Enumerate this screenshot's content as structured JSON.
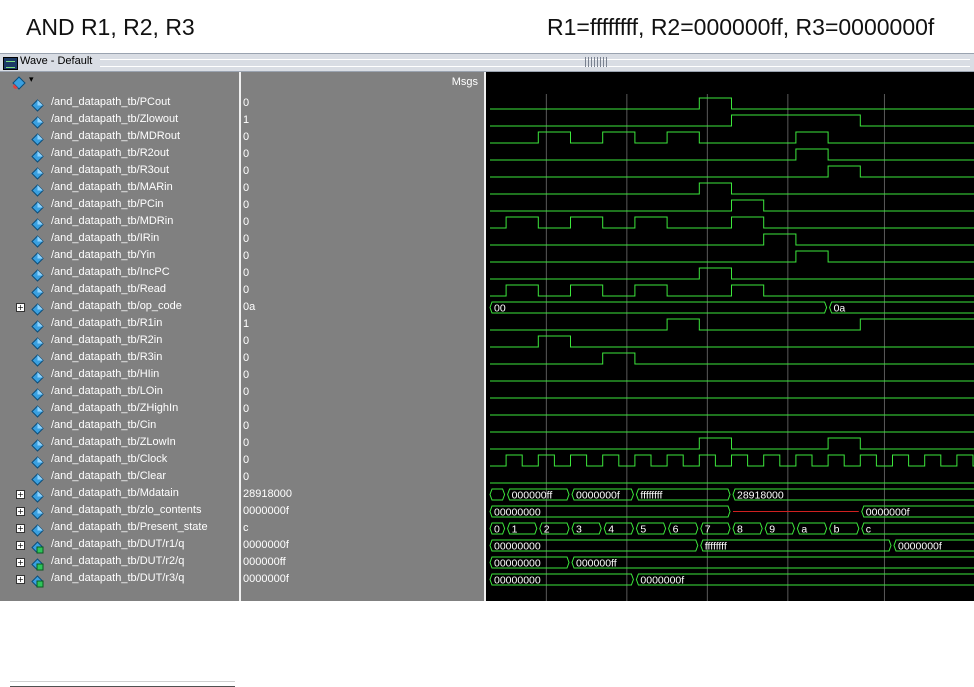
{
  "caption": {
    "left": "AND R1, R2, R3",
    "right": "R1=ffffffff, R2=000000ff, R3=0000000f"
  },
  "window": {
    "title": "Wave - Default",
    "icon": "wave-window-icon",
    "header_msgs": "Msgs",
    "tool_icon": "diamond-cursor-icon",
    "tool_dropdown": "▾"
  },
  "colors": {
    "wave": "#3ce63c",
    "grid": "#5a5a5a",
    "invalid": "#d02020",
    "panel_bg": "#808080",
    "wave_bg": "#000000"
  },
  "wave_grid": [
    7,
    17,
    27,
    37,
    49
  ],
  "signals": [
    {
      "name": "/and_datapath_tb/PCout",
      "value": "0",
      "type": "bit",
      "icon": "diamond-signal-icon",
      "expandable": false,
      "wave": [
        [
          0,
          0
        ],
        [
          26,
          1
        ],
        [
          30,
          0
        ]
      ]
    },
    {
      "name": "/and_datapath_tb/Zlowout",
      "value": "1",
      "type": "bit",
      "icon": "diamond-signal-icon",
      "expandable": false,
      "wave": [
        [
          0,
          0
        ],
        [
          30,
          1
        ],
        [
          46,
          0
        ]
      ]
    },
    {
      "name": "/and_datapath_tb/MDRout",
      "value": "0",
      "type": "bit",
      "icon": "diamond-signal-icon",
      "expandable": false,
      "wave": [
        [
          0,
          0
        ],
        [
          6,
          1
        ],
        [
          10,
          0
        ],
        [
          14,
          1
        ],
        [
          18,
          0
        ],
        [
          22,
          1
        ],
        [
          26,
          0
        ],
        [
          38,
          1
        ],
        [
          42,
          0
        ]
      ]
    },
    {
      "name": "/and_datapath_tb/R2out",
      "value": "0",
      "type": "bit",
      "icon": "diamond-signal-icon",
      "expandable": false,
      "wave": [
        [
          0,
          0
        ],
        [
          38,
          1
        ],
        [
          42,
          0
        ]
      ]
    },
    {
      "name": "/and_datapath_tb/R3out",
      "value": "0",
      "type": "bit",
      "icon": "diamond-signal-icon",
      "expandable": false,
      "wave": [
        [
          0,
          0
        ],
        [
          42,
          1
        ],
        [
          46,
          0
        ]
      ]
    },
    {
      "name": "/and_datapath_tb/MARin",
      "value": "0",
      "type": "bit",
      "icon": "diamond-signal-icon",
      "expandable": false,
      "wave": [
        [
          0,
          0
        ],
        [
          26,
          1
        ],
        [
          30,
          0
        ]
      ]
    },
    {
      "name": "/and_datapath_tb/PCin",
      "value": "0",
      "type": "bit",
      "icon": "diamond-signal-icon",
      "expandable": false,
      "wave": [
        [
          0,
          0
        ],
        [
          30,
          1
        ],
        [
          34,
          0
        ]
      ]
    },
    {
      "name": "/and_datapath_tb/MDRin",
      "value": "0",
      "type": "bit",
      "icon": "diamond-signal-icon",
      "expandable": false,
      "wave": [
        [
          0,
          0
        ],
        [
          2,
          1
        ],
        [
          6,
          0
        ],
        [
          10,
          1
        ],
        [
          14,
          0
        ],
        [
          18,
          1
        ],
        [
          22,
          0
        ],
        [
          30,
          1
        ],
        [
          34,
          0
        ]
      ]
    },
    {
      "name": "/and_datapath_tb/IRin",
      "value": "0",
      "type": "bit",
      "icon": "diamond-signal-icon",
      "expandable": false,
      "wave": [
        [
          0,
          0
        ],
        [
          34,
          1
        ],
        [
          38,
          0
        ]
      ]
    },
    {
      "name": "/and_datapath_tb/Yin",
      "value": "0",
      "type": "bit",
      "icon": "diamond-signal-icon",
      "expandable": false,
      "wave": [
        [
          0,
          0
        ],
        [
          38,
          1
        ],
        [
          42,
          0
        ]
      ]
    },
    {
      "name": "/and_datapath_tb/IncPC",
      "value": "0",
      "type": "bit",
      "icon": "diamond-signal-icon",
      "expandable": false,
      "wave": [
        [
          0,
          0
        ],
        [
          26,
          1
        ],
        [
          30,
          0
        ]
      ]
    },
    {
      "name": "/and_datapath_tb/Read",
      "value": "0",
      "type": "bit",
      "icon": "diamond-signal-icon",
      "expandable": false,
      "wave": [
        [
          0,
          0
        ],
        [
          2,
          1
        ],
        [
          6,
          0
        ],
        [
          10,
          1
        ],
        [
          14,
          0
        ],
        [
          18,
          1
        ],
        [
          22,
          0
        ],
        [
          30,
          1
        ],
        [
          34,
          0
        ]
      ]
    },
    {
      "name": "/and_datapath_tb/op_code",
      "value": "0a",
      "type": "bus",
      "icon": "diamond-signal-icon",
      "expandable": true,
      "segments": [
        [
          0,
          "00"
        ],
        [
          42,
          "0a"
        ]
      ]
    },
    {
      "name": "/and_datapath_tb/R1in",
      "value": "1",
      "type": "bit",
      "icon": "diamond-signal-icon",
      "expandable": false,
      "wave": [
        [
          0,
          0
        ],
        [
          22,
          1
        ],
        [
          26,
          0
        ],
        [
          46,
          1
        ]
      ]
    },
    {
      "name": "/and_datapath_tb/R2in",
      "value": "0",
      "type": "bit",
      "icon": "diamond-signal-icon",
      "expandable": false,
      "wave": [
        [
          0,
          0
        ],
        [
          6,
          1
        ],
        [
          10,
          0
        ]
      ]
    },
    {
      "name": "/and_datapath_tb/R3in",
      "value": "0",
      "type": "bit",
      "icon": "diamond-signal-icon",
      "expandable": false,
      "wave": [
        [
          0,
          0
        ],
        [
          14,
          1
        ],
        [
          18,
          0
        ]
      ]
    },
    {
      "name": "/and_datapath_tb/HIin",
      "value": "0",
      "type": "bit",
      "icon": "diamond-signal-icon",
      "expandable": false,
      "wave": [
        [
          0,
          0
        ]
      ]
    },
    {
      "name": "/and_datapath_tb/LOin",
      "value": "0",
      "type": "bit",
      "icon": "diamond-signal-icon",
      "expandable": false,
      "wave": [
        [
          0,
          0
        ]
      ]
    },
    {
      "name": "/and_datapath_tb/ZHighIn",
      "value": "0",
      "type": "bit",
      "icon": "diamond-signal-icon",
      "expandable": false,
      "wave": [
        [
          0,
          0
        ]
      ]
    },
    {
      "name": "/and_datapath_tb/Cin",
      "value": "0",
      "type": "bit",
      "icon": "diamond-signal-icon",
      "expandable": false,
      "wave": [
        [
          0,
          0
        ]
      ]
    },
    {
      "name": "/and_datapath_tb/ZLowIn",
      "value": "0",
      "type": "bit",
      "icon": "diamond-signal-icon",
      "expandable": false,
      "wave": [
        [
          0,
          0
        ],
        [
          26,
          1
        ],
        [
          30,
          0
        ],
        [
          42,
          1
        ],
        [
          46,
          0
        ]
      ]
    },
    {
      "name": "/and_datapath_tb/Clock",
      "value": "0",
      "type": "clock",
      "icon": "diamond-signal-icon",
      "expandable": false,
      "period": 4
    },
    {
      "name": "/and_datapath_tb/Clear",
      "value": "0",
      "type": "bit",
      "icon": "diamond-signal-icon",
      "expandable": false,
      "wave": [
        [
          0,
          0
        ]
      ]
    },
    {
      "name": "/and_datapath_tb/Mdatain",
      "value": "28918000",
      "type": "bus",
      "icon": "diamond-signal-icon",
      "expandable": true,
      "segments": [
        [
          0,
          ""
        ],
        [
          2,
          "000000ff"
        ],
        [
          10,
          "0000000f"
        ],
        [
          18,
          "ffffffff"
        ],
        [
          30,
          "28918000"
        ]
      ]
    },
    {
      "name": "/and_datapath_tb/zlo_contents",
      "value": "0000000f",
      "type": "bus",
      "icon": "diamond-signal-icon",
      "expandable": true,
      "segments": [
        [
          0,
          "00000000"
        ],
        [
          30,
          "",
          true
        ],
        [
          46,
          "0000000f"
        ]
      ]
    },
    {
      "name": "/and_datapath_tb/Present_state",
      "value": "c",
      "type": "bus",
      "icon": "diamond-signal-icon",
      "expandable": true,
      "segments": [
        [
          0,
          "0"
        ],
        [
          2,
          "1"
        ],
        [
          6,
          "2"
        ],
        [
          10,
          "3"
        ],
        [
          14,
          "4"
        ],
        [
          18,
          "5"
        ],
        [
          22,
          "6"
        ],
        [
          26,
          "7"
        ],
        [
          30,
          "8"
        ],
        [
          34,
          "9"
        ],
        [
          38,
          "a"
        ],
        [
          42,
          "b"
        ],
        [
          46,
          "c"
        ]
      ]
    },
    {
      "name": "/and_datapath_tb/DUT/r1/q",
      "value": "0000000f",
      "type": "bus",
      "icon": "register-signal-icon",
      "expandable": true,
      "segments": [
        [
          0,
          "00000000"
        ],
        [
          26,
          "ffffffff"
        ],
        [
          50,
          "0000000f"
        ]
      ]
    },
    {
      "name": "/and_datapath_tb/DUT/r2/q",
      "value": "000000ff",
      "type": "bus",
      "icon": "register-signal-icon",
      "expandable": true,
      "segments": [
        [
          0,
          "00000000"
        ],
        [
          10,
          "000000ff"
        ]
      ]
    },
    {
      "name": "/and_datapath_tb/DUT/r3/q",
      "value": "0000000f",
      "type": "bus",
      "icon": "register-signal-icon",
      "expandable": true,
      "segments": [
        [
          0,
          "00000000"
        ],
        [
          18,
          "0000000f"
        ]
      ]
    }
  ]
}
